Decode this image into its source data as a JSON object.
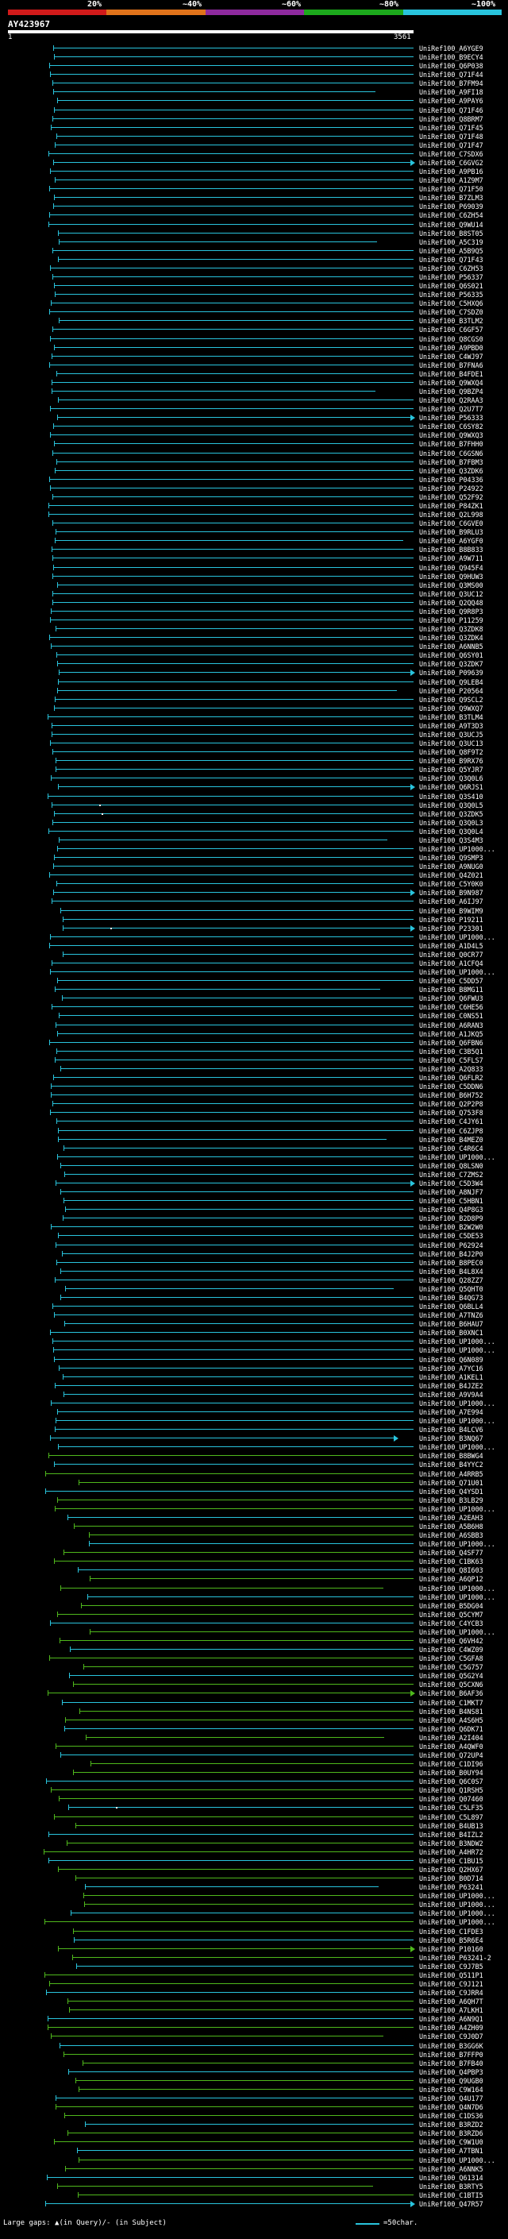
{
  "header": {
    "query_name": "AY423967",
    "coverage_scale": [
      {
        "label": "20%",
        "color": "#d11a1a"
      },
      {
        "label": "~40%",
        "color": "#e0731b"
      },
      {
        "label": "~60%",
        "color": "#8e2a9e"
      },
      {
        "label": "~80%",
        "color": "#1ca81c"
      },
      {
        "label": "~100%",
        "color": "#29c4dd"
      }
    ],
    "query_start": "1",
    "query_end": "3561"
  },
  "colors": {
    "cyan": "#29c4dd",
    "green": "#4fb81c",
    "bg": "#000000"
  },
  "hits": [
    "UniRef100_A6YGE9",
    "UniRef100_B9ECY4",
    "UniRef100_Q6P038",
    "UniRef100_Q71F44",
    "UniRef100_B7FM94",
    "UniRef100_A9FI18",
    "UniRef100_A9PAY6",
    "UniRef100_Q71F46",
    "UniRef100_Q8BRM7",
    "UniRef100_Q71F45",
    "UniRef100_Q71F48",
    "UniRef100_Q71F47",
    "UniRef100_C7SDX6",
    "UniRef100_C6GVG2",
    "UniRef100_A9PB16",
    "UniRef100_A1Z9M7",
    "UniRef100_Q71F50",
    "UniRef100_B7ZLM3",
    "UniRef100_P69039",
    "UniRef100_C6ZH54",
    "UniRef100_Q9WU14",
    "UniRef100_B8ST05",
    "UniRef100_A5C319",
    "UniRef100_A5B9Q5",
    "UniRef100_Q71F43",
    "UniRef100_C6ZH53",
    "UniRef100_P56337",
    "UniRef100_Q6S021",
    "UniRef100_P56335",
    "UniRef100_C5HXQ6",
    "UniRef100_C7SDZ0",
    "UniRef100_B3TLM2",
    "UniRef100_C6GF57",
    "UniRef100_Q8CGS0",
    "UniRef100_A9PBD0",
    "UniRef100_C4WJ97",
    "UniRef100_B7FNA6",
    "UniRef100_B4FDE1",
    "UniRef100_Q9WXQ4",
    "UniRef100_Q9BZP4",
    "UniRef100_Q2RAA3",
    "UniRef100_Q2U7T7",
    "UniRef100_P56333",
    "UniRef100_C6SY82",
    "UniRef100_Q9WXQ3",
    "UniRef100_B7FHH0",
    "UniRef100_C6GSN6",
    "UniRef100_B7FBM3",
    "UniRef100_Q3ZDK6",
    "UniRef100_P04336",
    "UniRef100_P24922",
    "UniRef100_Q52F92",
    "UniRef100_P84ZK1",
    "UniRef100_Q2L998",
    "UniRef100_C6GVE0",
    "UniRef100_B9RLU3",
    "UniRef100_A6YGF0",
    "UniRef100_B8B833",
    "UniRef100_A9W711",
    "UniRef100_Q945F4",
    "UniRef100_Q9HUW3",
    "UniRef100_Q3MS00",
    "UniRef100_Q3UC12",
    "UniRef100_Q2QQ48",
    "UniRef100_Q9R8P3",
    "UniRef100_P11259",
    "UniRef100_Q3ZDK8",
    "UniRef100_Q3ZDK4",
    "UniRef100_A6NNB5",
    "UniRef100_Q6SY01",
    "UniRef100_Q3ZDK7",
    "UniRef100_P09639",
    "UniRef100_Q9LEB4",
    "UniRef100_P20564",
    "UniRef100_Q9SCL2",
    "UniRef100_Q9WXQ7",
    "UniRef100_B3TLM4",
    "UniRef100_A9T3D3",
    "UniRef100_Q3UCJ5",
    "UniRef100_Q3UC13",
    "UniRef100_Q8F9T2",
    "UniRef100_B9RX76",
    "UniRef100_Q5YJR7",
    "UniRef100_Q3Q0L6",
    "UniRef100_Q6RJS1",
    "UniRef100_Q3S410",
    "UniRef100_Q3Q0L5",
    "UniRef100_Q3ZDK5",
    "UniRef100_Q3Q0L3",
    "UniRef100_Q3Q0L4",
    "UniRef100_Q3S4M3",
    "UniRef100_UP1000...",
    "UniRef100_Q9SMP3",
    "UniRef100_A9NUG0",
    "UniRef100_Q4Z021",
    "UniRef100_C5Y0K0",
    "UniRef100_B9N987",
    "UniRef100_A6IJ97",
    "UniRef100_B9WIM9",
    "UniRef100_P19211",
    "UniRef100_P23301",
    "UniRef100_UP1000...",
    "UniRef100_A1D4L5",
    "UniRef100_Q0CR77",
    "UniRef100_A1CFQ4",
    "UniRef100_UP1000...",
    "UniRef100_C5DD57",
    "UniRef100_B8MG11",
    "UniRef100_Q6FWU3",
    "UniRef100_C6HE56",
    "UniRef100_C0NS51",
    "UniRef100_A6RAN3",
    "UniRef100_A1JKQ5",
    "UniRef100_Q6FBN6",
    "UniRef100_C3B5Q1",
    "UniRef100_C5FLS7",
    "UniRef100_A2Q833",
    "UniRef100_Q6FLR2",
    "UniRef100_C5DDN6",
    "UniRef100_B6H752",
    "UniRef100_Q2P2P8",
    "UniRef100_Q753F8",
    "UniRef100_C4JY61",
    "UniRef100_C6ZJP8",
    "UniRef100_B4MEZ0",
    "UniRef100_C4R6C4",
    "UniRef100_UP1000...",
    "UniRef100_Q8LSN0",
    "UniRef100_C7ZMS2",
    "UniRef100_C5D3W4",
    "UniRef100_A8NJF7",
    "UniRef100_C5HBN1",
    "UniRef100_Q4P8G3",
    "UniRef100_B2D8P9",
    "UniRef100_B2W2W0",
    "UniRef100_C5DE53",
    "UniRef100_P62924",
    "UniRef100_B4J2P0",
    "UniRef100_B8PEC0",
    "UniRef100_B4L8X4",
    "UniRef100_Q28ZZ7",
    "UniRef100_Q5QHT0",
    "UniRef100_B4QG73",
    "UniRef100_Q6BLL4",
    "UniRef100_A7TNZ6",
    "UniRef100_B6HAU7",
    "UniRef100_B0XNC1",
    "UniRef100_UP1000...",
    "UniRef100_UP1000...",
    "UniRef100_Q6N089",
    "UniRef100_A7YC16",
    "UniRef100_A1KEL1",
    "UniRef100_B4JZE2",
    "UniRef100_A9V9A4",
    "UniRef100_UP1000...",
    "UniRef100_A7E994",
    "UniRef100_UP1000...",
    "UniRef100_B4LCV6",
    "UniRef100_B3NQ67",
    "UniRef100_UP1000...",
    "UniRef100_B8BWG4",
    "UniRef100_B4YYC2",
    "UniRef100_A4RRB5",
    "UniRef100_Q71U01",
    "UniRef100_Q4YSD1",
    "UniRef100_B3LB29",
    "UniRef100_UP1000...",
    "UniRef100_A2EAH3",
    "UniRef100_A5B6H8",
    "UniRef100_A6SBB3",
    "UniRef100_UP1000...",
    "UniRef100_Q4SF77",
    "UniRef100_C1BK63",
    "UniRef100_Q8I603",
    "UniRef100_A6QP12",
    "UniRef100_UP1000...",
    "UniRef100_UP1000...",
    "UniRef100_B5DG04",
    "UniRef100_Q5CYM7",
    "UniRef100_C4YCB3",
    "UniRef100_UP1000...",
    "UniRef100_Q6VH42",
    "UniRef100_C4WZ09",
    "UniRef100_C5GFA8",
    "UniRef100_C5G757",
    "UniRef100_Q5G2Y4",
    "UniRef100_Q5CXN6",
    "UniRef100_B6AF36",
    "UniRef100_C1MKT7",
    "UniRef100_B4NS81",
    "UniRef100_A4S6H5",
    "UniRef100_Q6DK71",
    "UniRef100_A2I404",
    "UniRef100_A4QWF0",
    "UniRef100_Q72UP4",
    "UniRef100_C1DI96",
    "UniRef100_B0UY94",
    "UniRef100_Q6C0S7",
    "UniRef100_Q1RSH5",
    "UniRef100_Q07460",
    "UniRef100_C5LF35",
    "UniRef100_C5L897",
    "UniRef100_B4UB13",
    "UniRef100_B4IZL2",
    "UniRef100_B3NDW2",
    "UniRef100_A4HR72",
    "UniRef100_C1BU15",
    "UniRef100_Q2HX67",
    "UniRef100_B0D714",
    "UniRef100_P63241",
    "UniRef100_UP1000...",
    "UniRef100_UP1000...",
    "UniRef100_UP1000...",
    "UniRef100_UP1000...",
    "UniRef100_C1FDE3",
    "UniRef100_B5R6E4",
    "UniRef100_P10160",
    "UniRef100_P63241-2",
    "UniRef100_C9J7B5",
    "UniRef100_Q511P1",
    "UniRef100_C9J121",
    "UniRef100_C9JRR4",
    "UniRef100_A6QH7T",
    "UniRef100_A7LKH1",
    "UniRef100_A6N9Q1",
    "UniRef100_A4ZH09",
    "UniRef100_C9J0D7",
    "UniRef100_B3GG6K",
    "UniRef100_B7FFP0",
    "UniRef100_B7FB40",
    "UniRef100_Q4PBP3",
    "UniRef100_Q9UGB0",
    "UniRef100_C9W164",
    "UniRef100_Q4U177",
    "UniRef100_Q4N7D6",
    "UniRef100_C1DS36",
    "UniRef100_B3RZD2",
    "UniRef100_B3RZD6",
    "UniRef100_C9W1U0",
    "UniRef100_A7TBN1",
    "UniRef100_UP1000...",
    "UniRef100_A6NNK5",
    "UniRef100_Q61314",
    "UniRef100_B3RTY5",
    "UniRef100_C1BTI5",
    "UniRef100_Q47R57"
  ],
  "footer": {
    "gap_text": "Large gaps: ▲(in Query)/- (in Subject)",
    "legend_text": "=50char."
  }
}
